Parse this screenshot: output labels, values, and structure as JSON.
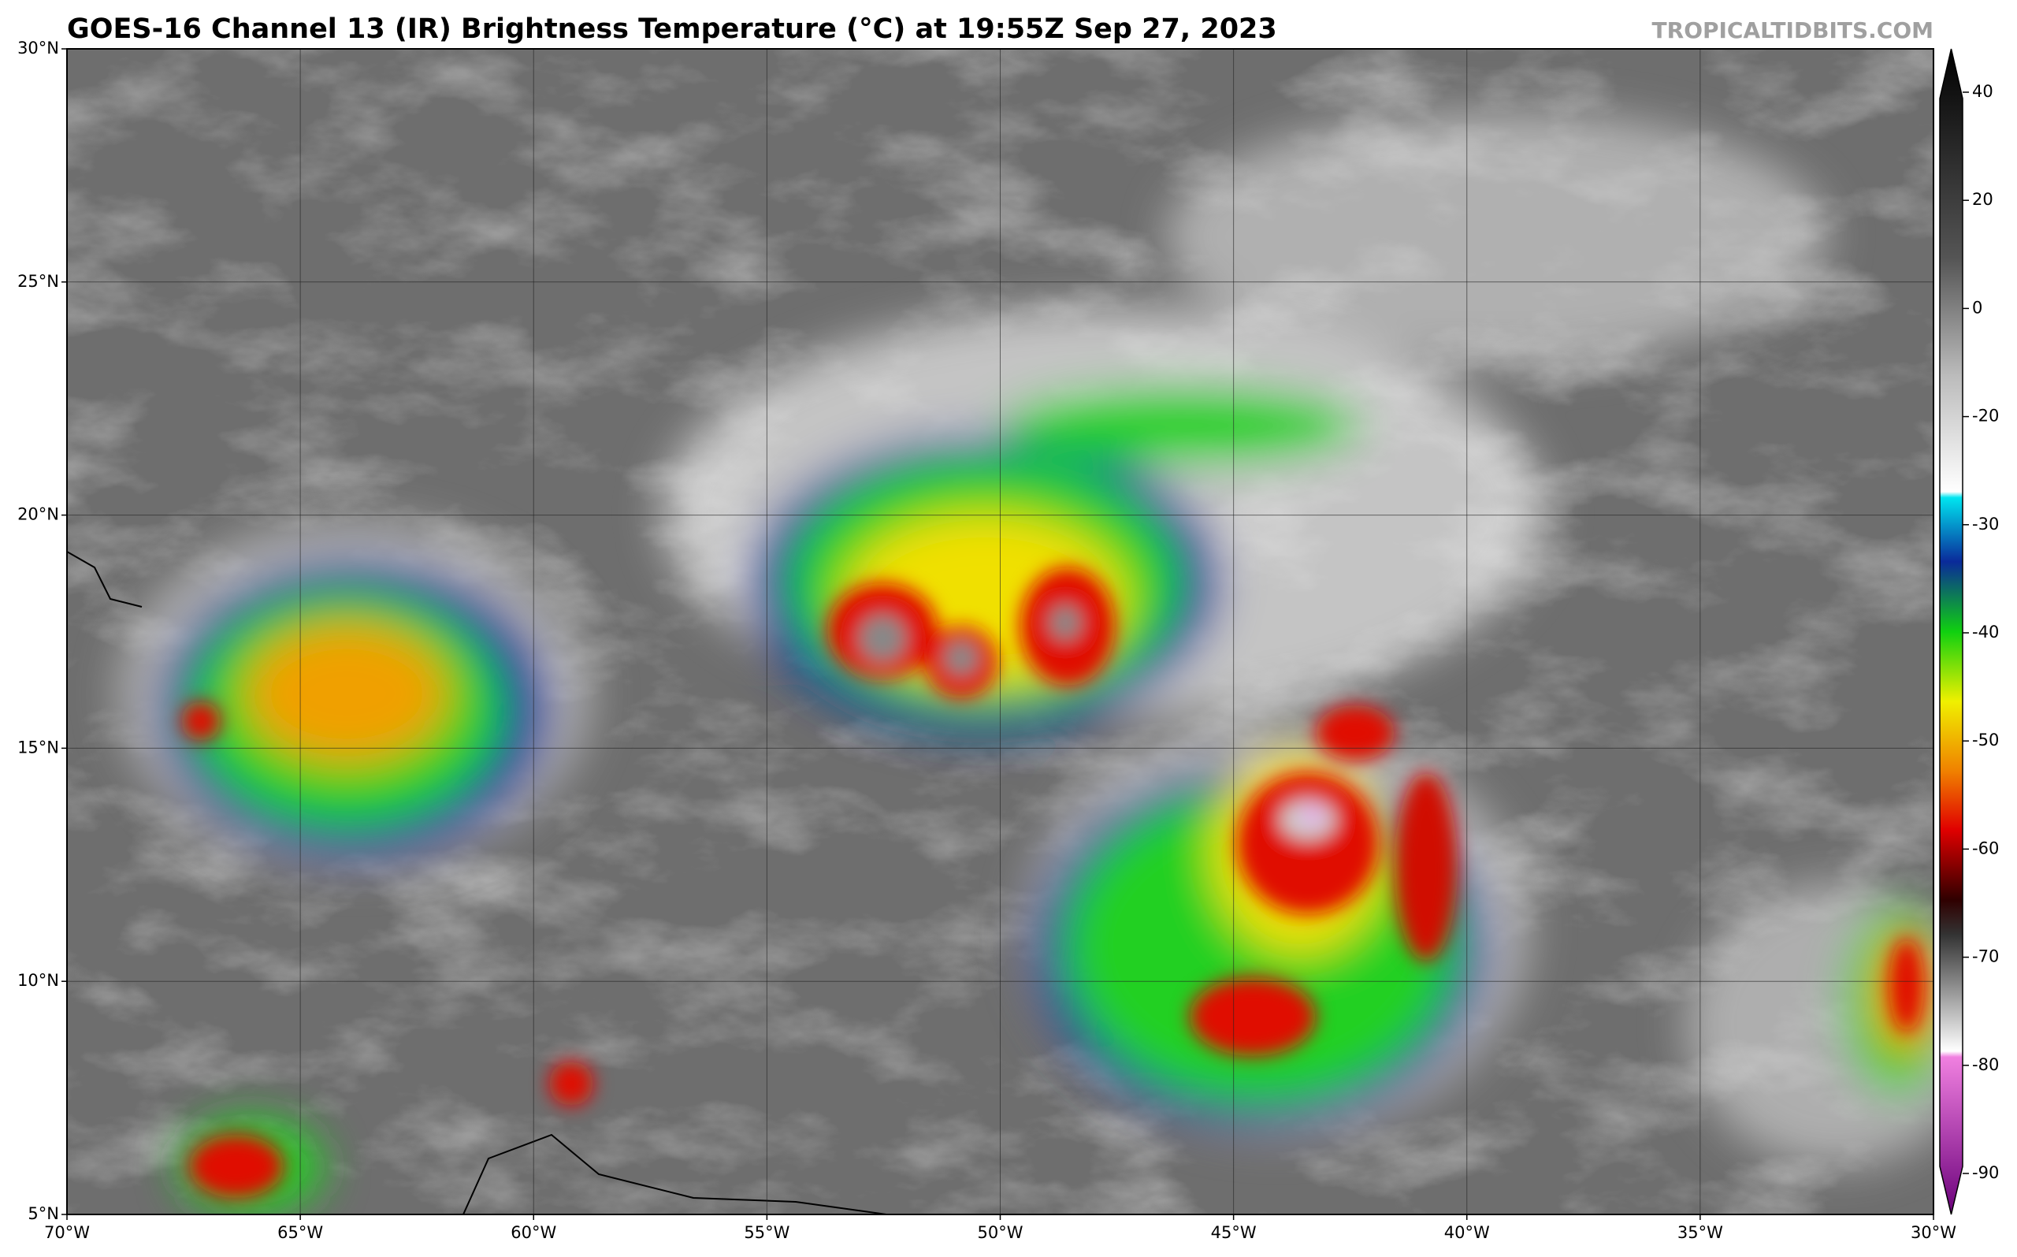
{
  "header": {
    "title": "GOES-16 Channel 13 (IR) Brightness Temperature (°C) at 19:55Z Sep 27, 2023",
    "watermark": "TROPICALTIDBITS.COM"
  },
  "map": {
    "xlim": [
      -70,
      -30
    ],
    "ylim": [
      5,
      30
    ],
    "xticks": [
      {
        "value": -70,
        "label": "70°W"
      },
      {
        "value": -65,
        "label": "65°W"
      },
      {
        "value": -60,
        "label": "60°W"
      },
      {
        "value": -55,
        "label": "55°W"
      },
      {
        "value": -50,
        "label": "50°W"
      },
      {
        "value": -45,
        "label": "45°W"
      },
      {
        "value": -40,
        "label": "40°W"
      },
      {
        "value": -35,
        "label": "35°W"
      },
      {
        "value": -30,
        "label": "30°W"
      }
    ],
    "yticks": [
      {
        "value": 30,
        "label": "30°N"
      },
      {
        "value": 25,
        "label": "25°N"
      },
      {
        "value": 20,
        "label": "20°N"
      },
      {
        "value": 15,
        "label": "15°N"
      },
      {
        "value": 10,
        "label": "10°N"
      },
      {
        "value": 5,
        "label": "5°N"
      }
    ],
    "grid": true
  },
  "colorbar": {
    "ticks": [
      40,
      20,
      0,
      -20,
      -30,
      -40,
      -50,
      -60,
      -70,
      -80,
      -90
    ]
  }
}
